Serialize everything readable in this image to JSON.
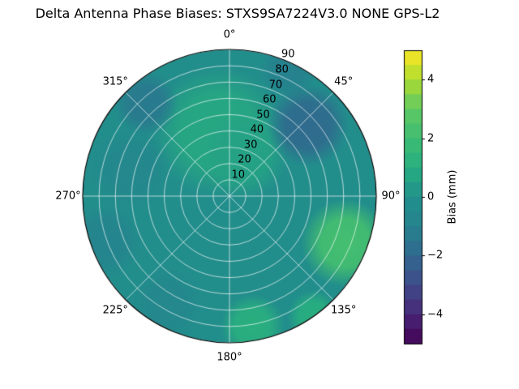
{
  "chart_data": {
    "type": "polar_contour",
    "title": "Delta Antenna Phase Biases: STXS9SA7224V3.0 NONE GPS-L2",
    "colormap": "viridis",
    "colorbar_label": "Bias (mm)",
    "colorbar_range": [
      -5,
      5
    ],
    "colorbar_ticks": [
      {
        "value": 4,
        "label": "4"
      },
      {
        "value": 2,
        "label": "2"
      },
      {
        "value": 0,
        "label": "0"
      },
      {
        "value": -2,
        "label": "−2"
      },
      {
        "value": -4,
        "label": "−4"
      }
    ],
    "azimuth_ticks": [
      {
        "angle_deg": 0,
        "label": "0°"
      },
      {
        "angle_deg": 45,
        "label": "45°"
      },
      {
        "angle_deg": 90,
        "label": "90°"
      },
      {
        "angle_deg": 135,
        "label": "135°"
      },
      {
        "angle_deg": 180,
        "label": "180°"
      },
      {
        "angle_deg": 225,
        "label": "225°"
      },
      {
        "angle_deg": 270,
        "label": "270°"
      },
      {
        "angle_deg": 315,
        "label": "315°"
      }
    ],
    "radial_ticks": [
      {
        "value": 10,
        "label": "10"
      },
      {
        "value": 20,
        "label": "20"
      },
      {
        "value": 30,
        "label": "30"
      },
      {
        "value": 40,
        "label": "40"
      },
      {
        "value": 50,
        "label": "50"
      },
      {
        "value": 60,
        "label": "60"
      },
      {
        "value": 70,
        "label": "70"
      },
      {
        "value": 80,
        "label": "80"
      },
      {
        "value": 90,
        "label": "90"
      }
    ],
    "radial_max": 90,
    "radial_label_angle_deg": 22.5,
    "grid": true,
    "legend_position": "colorbar-right",
    "base_value_mm": -0.2,
    "bias_regions_mm": [
      {
        "azimuth_deg": 350,
        "radius_frac": 0.45,
        "value_mm": 0.8,
        "size_frac": 0.45
      },
      {
        "azimuth_deg": 20,
        "radius_frac": 0.3,
        "value_mm": 0.6,
        "size_frac": 0.3
      },
      {
        "azimuth_deg": 25,
        "radius_frac": 0.95,
        "value_mm": -1.0,
        "size_frac": 0.2
      },
      {
        "azimuth_deg": 48,
        "radius_frac": 0.72,
        "value_mm": -1.9,
        "size_frac": 0.28
      },
      {
        "azimuth_deg": 112,
        "radius_frac": 0.85,
        "value_mm": 2.2,
        "size_frac": 0.3
      },
      {
        "azimuth_deg": 145,
        "radius_frac": 1.0,
        "value_mm": 1.0,
        "size_frac": 0.18
      },
      {
        "azimuth_deg": 170,
        "radius_frac": 0.9,
        "value_mm": 1.1,
        "size_frac": 0.22
      },
      {
        "azimuth_deg": 210,
        "radius_frac": 0.85,
        "value_mm": -0.6,
        "size_frac": 0.25
      },
      {
        "azimuth_deg": 250,
        "radius_frac": 0.9,
        "value_mm": -0.8,
        "size_frac": 0.25
      },
      {
        "azimuth_deg": 285,
        "radius_frac": 0.7,
        "value_mm": -0.6,
        "size_frac": 0.28
      },
      {
        "azimuth_deg": 318,
        "radius_frac": 0.85,
        "value_mm": -1.3,
        "size_frac": 0.22
      }
    ]
  }
}
